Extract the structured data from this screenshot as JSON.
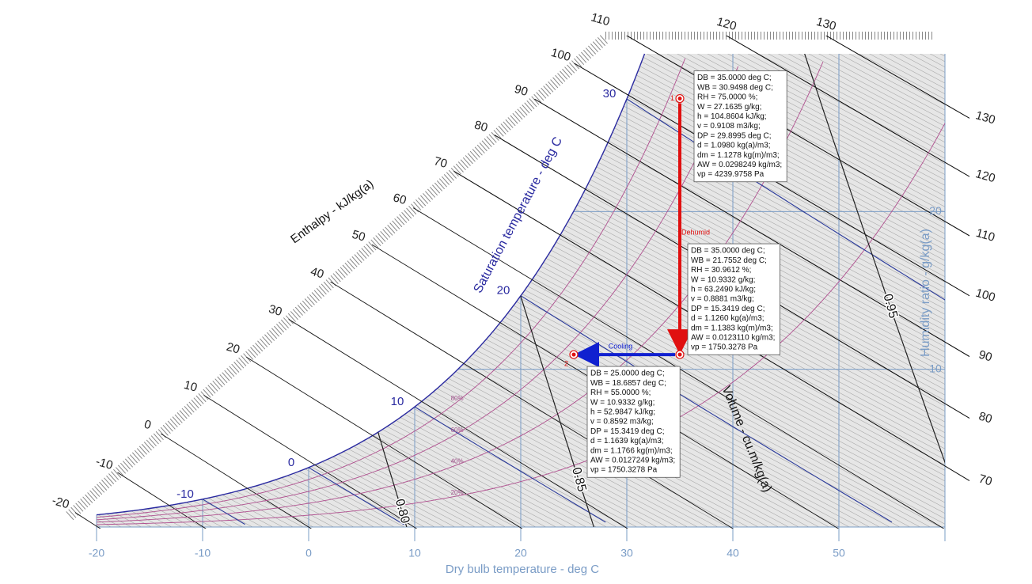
{
  "chart_data": {
    "type": "psychrometric",
    "x_label": "Dry bulb temperature - deg C",
    "y_label": "Humidity ratio - g/kg(a)",
    "enthalpy_label": "Enthalpy - kJ/kg(a)",
    "saturation_label": "Saturation temperature - deg C",
    "volume_label": "Volume - cu.m/kg(a)",
    "xlim": [
      -20,
      60
    ],
    "ylim": [
      0,
      30
    ],
    "xticks": [
      -20,
      -10,
      0,
      10,
      20,
      30,
      40,
      50
    ],
    "yticks": [
      10,
      20
    ],
    "enthalpy_ticks": [
      -20,
      -10,
      0,
      10,
      20,
      30,
      40,
      50,
      60,
      70,
      80,
      90,
      100,
      110
    ],
    "enthalpy_ticks_top": [
      120,
      130
    ],
    "enthalpy_ticks_right": [
      70,
      80,
      90,
      100,
      110,
      120,
      130
    ],
    "saturation_ticks": [
      -10,
      0,
      10,
      20,
      30
    ],
    "volume_ticks": [
      {
        "value": 0.8,
        "label": "0.80"
      },
      0.85,
      0.95
    ],
    "rh_ticks": [
      {
        "value": 20,
        "label": "20%"
      },
      {
        "value": 40,
        "label": "40%"
      },
      {
        "value": 60,
        "label": "60%"
      },
      {
        "value": 80,
        "label": "80%"
      }
    ],
    "points": [
      {
        "label": "1",
        "x": 35,
        "y": 27.1635,
        "info": [
          "DB = 35.0000 deg C;",
          "WB = 30.9498 deg C;",
          "RH = 75.0000 %;",
          "W = 27.1635 g/kg;",
          "h = 104.8604 kJ/kg;",
          "v = 0.9108 m3/kg;",
          "DP = 29.8995 deg C;",
          "d = 1.0980 kg(a)/m3;",
          "dm = 1.1278 kg(m)/m3;",
          "AW = 0.0298249 kg/m3;",
          "vp = 4239.9758 Pa"
        ]
      },
      {
        "label": null,
        "x": 35,
        "y": 10.9332,
        "info": [
          "DB = 35.0000 deg C;",
          "WB = 21.7552 deg C;",
          "RH = 30.9612 %;",
          "W = 10.9332 g/kg;",
          "h = 63.2490 kJ/kg;",
          "v = 0.8881 m3/kg;",
          "DP = 15.3419 deg C;",
          "d = 1.1260 kg(a)/m3;",
          "dm = 1.1383 kg(m)/m3;",
          "AW = 0.0123110 kg/m3;",
          "vp = 1750.3278 Pa"
        ]
      },
      {
        "label": "2",
        "x": 25,
        "y": 10.9332,
        "info": [
          "DB = 25.0000 deg C;",
          "WB = 18.6857 deg C;",
          "RH = 55.0000 %;",
          "W = 10.9332 g/kg;",
          "h = 52.9847 kJ/kg;",
          "v = 0.8592 m3/kg;",
          "DP = 15.3419 deg C;",
          "d = 1.1639 kg(a)/m3;",
          "dm = 1.1766 kg(m)/m3;",
          "AW = 0.0127249 kg/m3;",
          "vp = 1750.3278 Pa"
        ]
      }
    ],
    "processes": [
      {
        "name": "Dehumid",
        "color": "#e01010"
      },
      {
        "name": "Cooling",
        "color": "#1020d0"
      }
    ]
  }
}
